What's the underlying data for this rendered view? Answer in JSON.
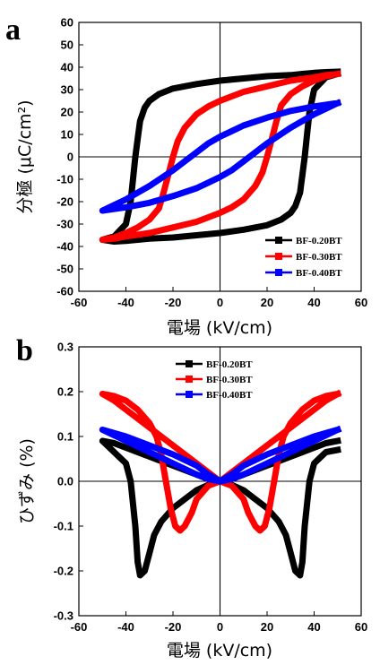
{
  "chart_data": [
    {
      "type": "line",
      "panel": "a",
      "xlabel": "電場 (kV/cm)",
      "ylabel": "分極 (μC/cm²)",
      "xlim": [
        -60,
        60
      ],
      "ylim": [
        -60,
        60
      ],
      "xticks": [
        -60,
        -40,
        -20,
        0,
        20,
        40,
        60
      ],
      "yticks": [
        -60,
        -50,
        -40,
        -30,
        -20,
        -10,
        0,
        10,
        20,
        30,
        40,
        50,
        60
      ],
      "grid": false,
      "legend_position": "bottom-right",
      "series": [
        {
          "name": "BF-0.20BT",
          "color": "#000000",
          "marker": "square",
          "x": [
            50,
            45,
            40,
            35,
            30,
            20,
            10,
            0,
            -10,
            -20,
            -26,
            -30,
            -32,
            -34,
            -35,
            -36,
            -37,
            -38,
            -40,
            -45,
            -50,
            -45,
            -40,
            -35,
            -30,
            -20,
            -10,
            0,
            10,
            20,
            26,
            30,
            32,
            34,
            35,
            36,
            37,
            38,
            40,
            45,
            50
          ],
          "y": [
            38,
            37.8,
            37.5,
            37,
            36.5,
            36,
            35,
            34,
            32.5,
            30.5,
            28,
            25,
            22,
            16,
            8,
            0,
            -10,
            -20,
            -30,
            -35.5,
            -37,
            -37.8,
            -37.5,
            -37,
            -36.5,
            -36,
            -35,
            -34,
            -32.5,
            -30.5,
            -28,
            -25,
            -22,
            -16,
            -8,
            0,
            10,
            20,
            30,
            35.5,
            37
          ]
        },
        {
          "name": "BF-0.30BT",
          "color": "#ff0000",
          "marker": "square",
          "x": [
            50,
            45,
            40,
            30,
            20,
            10,
            5,
            0,
            -5,
            -10,
            -15,
            -18,
            -20,
            -22,
            -24,
            -26,
            -30,
            -35,
            -40,
            -45,
            -50,
            -45,
            -40,
            -30,
            -20,
            -10,
            -5,
            0,
            5,
            10,
            15,
            18,
            20,
            22,
            24,
            26,
            30,
            35,
            40,
            45,
            50
          ],
          "y": [
            37,
            36.5,
            35.5,
            34,
            31.5,
            29,
            27,
            25,
            22.5,
            19,
            13,
            7,
            0,
            -8,
            -16,
            -23,
            -28,
            -31.5,
            -34,
            -36,
            -37,
            -36.5,
            -35.5,
            -34,
            -31.5,
            -29,
            -27,
            -25,
            -22.5,
            -19,
            -13,
            -7,
            0,
            8,
            16,
            23,
            28,
            31.5,
            34,
            36,
            37
          ]
        },
        {
          "name": "BF-0.40BT",
          "color": "#0000ff",
          "marker": "square",
          "x": [
            50,
            40,
            30,
            20,
            10,
            5,
            0,
            -5,
            -10,
            -15,
            -20,
            -30,
            -40,
            -50,
            -40,
            -30,
            -20,
            -10,
            -5,
            0,
            5,
            10,
            15,
            20,
            30,
            40,
            50
          ],
          "y": [
            24,
            22.5,
            20.5,
            17.5,
            14,
            11.5,
            9,
            6,
            2,
            -2,
            -6,
            -13,
            -19,
            -24,
            -22.5,
            -20.5,
            -17.5,
            -14,
            -11.5,
            -9,
            -6,
            -2,
            2,
            6,
            13,
            19,
            24
          ]
        }
      ]
    },
    {
      "type": "line",
      "panel": "b",
      "xlabel": "電場 (kV/cm)",
      "ylabel": "ひずみ (%)",
      "xlim": [
        -60,
        60
      ],
      "ylim": [
        -0.3,
        0.3
      ],
      "xticks": [
        -60,
        -40,
        -20,
        0,
        20,
        40,
        60
      ],
      "yticks": [
        -0.3,
        -0.2,
        -0.1,
        0.0,
        0.1,
        0.2,
        0.3
      ],
      "grid": false,
      "legend_position": "top-center",
      "series": [
        {
          "name": "BF-0.20BT",
          "color": "#000000",
          "marker": "square",
          "x": [
            50,
            45,
            40,
            38,
            36,
            35,
            34,
            32,
            30,
            28,
            25,
            20,
            15,
            10,
            5,
            0,
            -5,
            -10,
            -15,
            -20,
            -25,
            -28,
            -30,
            -32,
            -34,
            -35,
            -36,
            -38,
            -40,
            -45,
            -50,
            -45,
            -40,
            -30,
            -20,
            -10,
            -5,
            0,
            5,
            10,
            20,
            30,
            40,
            45,
            50
          ],
          "y": [
            0.07,
            0.065,
            0.04,
            0.0,
            -0.1,
            -0.18,
            -0.21,
            -0.2,
            -0.16,
            -0.12,
            -0.09,
            -0.06,
            -0.04,
            -0.02,
            -0.008,
            0.0,
            -0.008,
            -0.02,
            -0.04,
            -0.06,
            -0.09,
            -0.12,
            -0.16,
            -0.2,
            -0.21,
            -0.18,
            -0.1,
            0.0,
            0.04,
            0.065,
            0.09,
            0.085,
            0.075,
            0.055,
            0.035,
            0.015,
            0.005,
            0.0,
            0.005,
            0.015,
            0.035,
            0.055,
            0.075,
            0.085,
            0.09
          ]
        },
        {
          "name": "BF-0.30BT",
          "color": "#ff0000",
          "marker": "square",
          "x": [
            50,
            45,
            40,
            35,
            30,
            27,
            25,
            23,
            21,
            19,
            17,
            15,
            12,
            10,
            5,
            0,
            -5,
            -10,
            -12,
            -15,
            -17,
            -19,
            -21,
            -23,
            -25,
            -27,
            -30,
            -35,
            -40,
            -45,
            -50,
            -45,
            -40,
            -30,
            -20,
            -10,
            -5,
            0,
            5,
            10,
            20,
            30,
            40,
            45,
            50
          ],
          "y": [
            0.195,
            0.19,
            0.18,
            0.16,
            0.13,
            0.1,
            0.06,
            0.0,
            -0.06,
            -0.1,
            -0.11,
            -0.1,
            -0.07,
            -0.04,
            -0.01,
            0.0,
            -0.01,
            -0.04,
            -0.07,
            -0.1,
            -0.11,
            -0.1,
            -0.06,
            0.0,
            0.06,
            0.1,
            0.13,
            0.16,
            0.18,
            0.19,
            0.195,
            0.18,
            0.16,
            0.12,
            0.08,
            0.04,
            0.02,
            0.0,
            0.02,
            0.04,
            0.08,
            0.12,
            0.16,
            0.18,
            0.195
          ]
        },
        {
          "name": "BF-0.40BT",
          "color": "#0000ff",
          "marker": "square",
          "x": [
            50,
            40,
            30,
            20,
            10,
            5,
            0,
            -5,
            -10,
            -20,
            -30,
            -40,
            -50,
            -40,
            -30,
            -20,
            -10,
            -5,
            0,
            5,
            10,
            20,
            30,
            40,
            50
          ],
          "y": [
            0.115,
            0.09,
            0.065,
            0.04,
            0.015,
            0.005,
            0.0,
            0.005,
            0.015,
            0.04,
            0.065,
            0.09,
            0.115,
            0.1,
            0.08,
            0.06,
            0.035,
            0.015,
            0.0,
            0.015,
            0.035,
            0.06,
            0.08,
            0.1,
            0.115
          ]
        }
      ]
    }
  ],
  "panel_labels": {
    "a": "a",
    "b": "b"
  },
  "legends": {
    "a": [
      "BF-0.20BT",
      "BF-0.30BT",
      "BF-0.40BT"
    ],
    "b": [
      "BF-0.20BT",
      "BF-0.30BT",
      "BF-0.40BT"
    ]
  },
  "axis_titles": {
    "a_x": "電場 (kV/cm)",
    "a_y": "分極 (μC/cm²)",
    "b_x": "電場 (kV/cm)",
    "b_y": "ひずみ (%)"
  }
}
